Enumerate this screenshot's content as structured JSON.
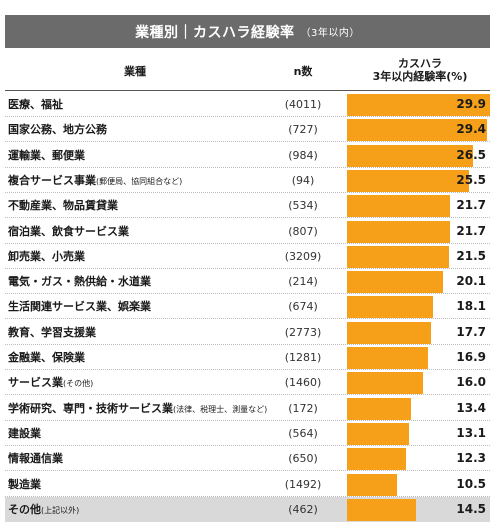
{
  "title": {
    "main": "業種別｜カスハラ経験率",
    "sub": "（3年以内）"
  },
  "headers": {
    "category": "業種",
    "n": "n数",
    "rate_line1": "カスハラ",
    "rate_line2": "3年以内経験率(%)"
  },
  "colors": {
    "bar": "#f6a01a",
    "title_bg": "#6b6b6b",
    "other_row_bg": "#d9d9d9"
  },
  "chart_data": {
    "type": "bar",
    "xlim": [
      0,
      30
    ],
    "categories": [
      "医療、福祉",
      "国家公務、地方公務",
      "運輸業、郵便業",
      "複合サービス事業",
      "不動産業、物品賃貸業",
      "宿泊業、飲食サービス業",
      "卸売業、小売業",
      "電気・ガス・熱供給・水道業",
      "生活関連サービス業、娯楽業",
      "教育、学習支援業",
      "金融業、保険業",
      "サービス業",
      "学術研究、専門・技術サービス業",
      "建設業",
      "情報通信業",
      "製造業",
      "その他"
    ],
    "category_notes": [
      "",
      "",
      "",
      "(郵便局、協同組合など)",
      "",
      "",
      "",
      "",
      "",
      "",
      "",
      "(その他)",
      "(法律、税理士、測量など)",
      "",
      "",
      "",
      "(上記以外)"
    ],
    "n_labels": [
      "(4011)",
      "(727)",
      "(984)",
      "(94)",
      "(534)",
      "(807)",
      "(3209)",
      "(214)",
      "(674)",
      "(2773)",
      "(1281)",
      "(1460)",
      "(172)",
      "(564)",
      "(650)",
      "(1492)",
      "(462)"
    ],
    "value_labels": [
      "29.9",
      "29.4",
      "26.5",
      "25.5",
      "21.7",
      "21.7",
      "21.5",
      "20.1",
      "18.1",
      "17.7",
      "16.9",
      "16.0",
      "13.4",
      "13.1",
      "12.3",
      "10.5",
      "14.5"
    ],
    "values": [
      29.9,
      29.4,
      26.5,
      25.5,
      21.7,
      21.7,
      21.5,
      20.1,
      18.1,
      17.7,
      16.9,
      16.0,
      13.4,
      13.1,
      12.3,
      10.5,
      14.5
    ]
  }
}
